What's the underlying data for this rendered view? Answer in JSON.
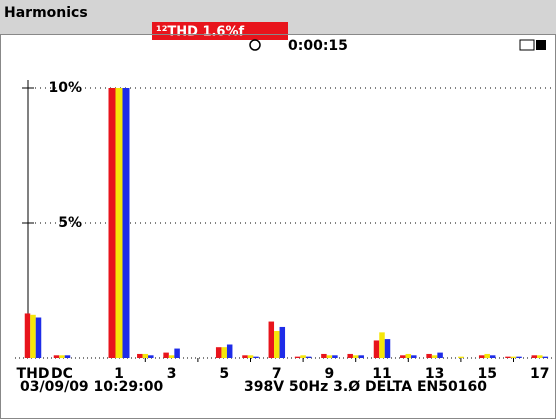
{
  "header": {
    "title": "Harmonics",
    "readout": "¹²THD  1.6%f",
    "timer": "0:00:15"
  },
  "footer": {
    "datetime": "03/09/09  10:29:00",
    "config": "398V  50Hz 3.Ø DELTA EN50160"
  },
  "chart_data": {
    "type": "bar",
    "categories": [
      "THD",
      "DC",
      "1",
      null,
      "3",
      null,
      "5",
      null,
      "7",
      null,
      "9",
      null,
      "11",
      null,
      "13",
      null,
      "15",
      null,
      "17"
    ],
    "series": [
      {
        "name": null,
        "color": "#e8141c",
        "values": [
          1.65,
          0.1,
          10,
          0.15,
          0.2,
          0,
          0.4,
          0.1,
          1.35,
          0.05,
          0.15,
          0.15,
          0.65,
          0.1,
          0.15,
          0,
          0.1,
          0.05,
          0.1
        ]
      },
      {
        "name": null,
        "color": "#f5e60a",
        "values": [
          1.6,
          0.1,
          10,
          0.15,
          0.1,
          0,
          0.4,
          0.1,
          1.0,
          0.1,
          0.1,
          0.1,
          0.95,
          0.15,
          0.1,
          0.05,
          0.15,
          0.05,
          0.1
        ]
      },
      {
        "name": null,
        "color": "#1e2ce8",
        "values": [
          1.5,
          0.1,
          10,
          0.1,
          0.35,
          0,
          0.5,
          0.05,
          1.15,
          0.05,
          0.1,
          0.1,
          0.7,
          0.1,
          0.2,
          0,
          0.1,
          0.05,
          0.05
        ]
      }
    ],
    "ylim": [
      0,
      10
    ],
    "yticks": [
      {
        "value": 5,
        "label": "5%"
      },
      {
        "value": 10,
        "label": "10%"
      }
    ],
    "grid": true
  }
}
